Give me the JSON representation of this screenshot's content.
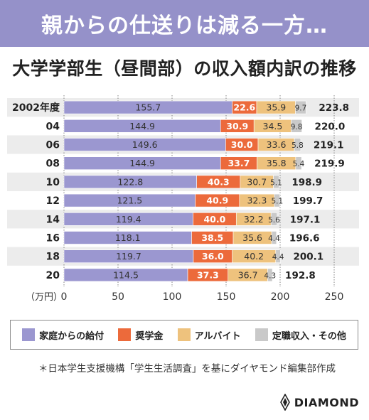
{
  "header": {
    "banner": "親からの仕送りは減る一方…",
    "subtitle": "大学学部生（昼間部）の収入額内訳の推移"
  },
  "chart_data": {
    "type": "bar",
    "orientation": "horizontal",
    "stacked": true,
    "categories": [
      "2002年度",
      "04",
      "06",
      "08",
      "10",
      "12",
      "14",
      "16",
      "18",
      "20"
    ],
    "series": [
      {
        "name": "家庭からの給付",
        "color": "#9b97d0",
        "label_color": "#333333",
        "values": [
          155.7,
          144.9,
          149.6,
          144.9,
          122.8,
          121.5,
          119.4,
          118.1,
          119.7,
          114.5
        ]
      },
      {
        "name": "奨学金",
        "color": "#ec6a3b",
        "label_color": "#ffffff",
        "values": [
          22.6,
          30.9,
          30.0,
          33.7,
          40.3,
          40.9,
          40.0,
          38.5,
          36.0,
          37.3
        ]
      },
      {
        "name": "アルバイト",
        "color": "#eec27d",
        "label_color": "#333333",
        "values": [
          35.9,
          34.5,
          33.6,
          35.8,
          30.7,
          32.3,
          32.2,
          35.6,
          40.2,
          36.7
        ]
      },
      {
        "name": "定職収入・その他",
        "color": "#c9c9c9",
        "label_color": "#333333",
        "values": [
          9.7,
          9.8,
          5.8,
          5.4,
          5.1,
          5.1,
          5.6,
          4.4,
          4.4,
          4.3
        ]
      }
    ],
    "totals": [
      223.8,
      220.0,
      219.1,
      219.9,
      198.9,
      199.7,
      197.1,
      196.6,
      200.1,
      192.8
    ],
    "x_unit": "（万円）",
    "xlim": [
      0,
      250
    ],
    "xticks": [
      0,
      50,
      100,
      150,
      200,
      250
    ],
    "grid": true,
    "legend_position": "bottom"
  },
  "footer": {
    "source": "＊日本学生支援機構「学生生活調査」を基にダイヤモンド編集部作成",
    "brand": "DIAMOND"
  }
}
